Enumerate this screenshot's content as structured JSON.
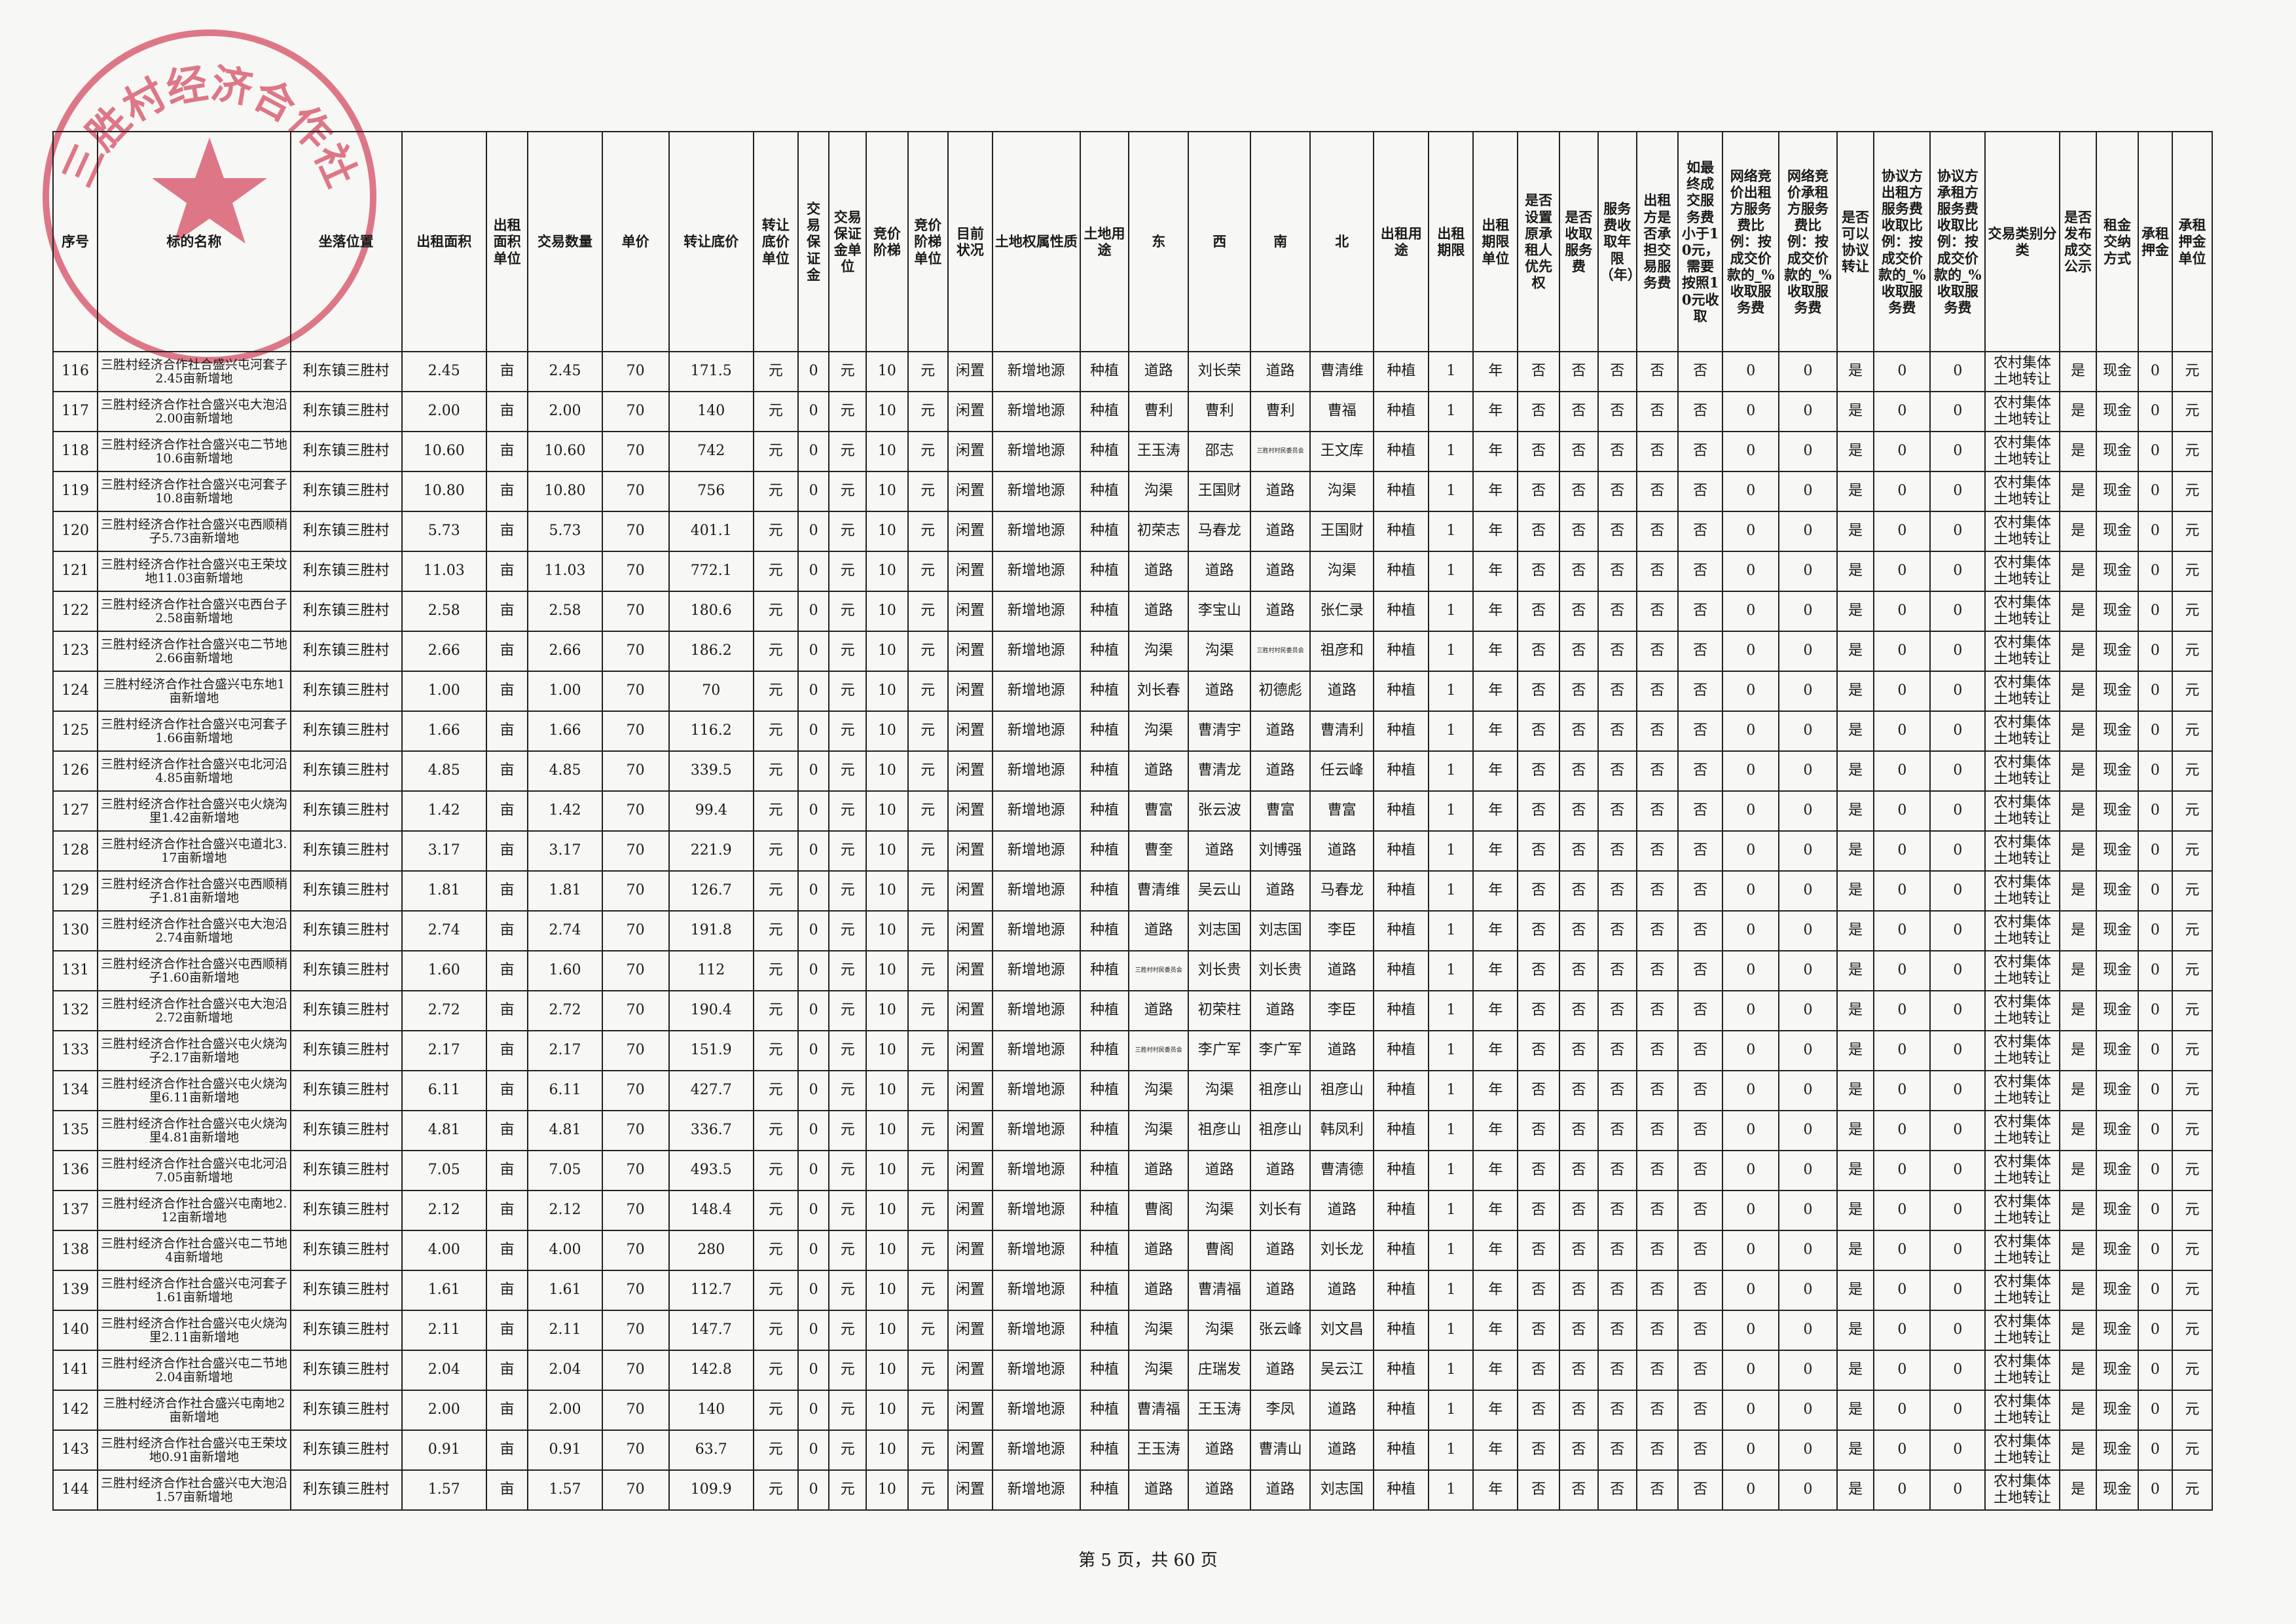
{
  "stamp": {
    "text": "三胜村经济合作社"
  },
  "table": {
    "header": [
      "序号",
      "标的名称",
      "坐落位置",
      "出租面积",
      "出租面积单位",
      "交易数量",
      "单价",
      "转让底价",
      "转让底价单位",
      "交易保证金",
      "交易保证金单位",
      "竞价阶梯",
      "竞价阶梯单位",
      "目前状况",
      "土地权属性质",
      "土地用途",
      "东",
      "西",
      "南",
      "北",
      "出租用途",
      "出租期限",
      "出租期限单位",
      "是否设置原承租人优先权",
      "是否收取服务费",
      "服务费收取年限（年）",
      "出租方是否承担交易服务费",
      "如最终成交服务费小于10元，需要按照10元收取",
      "网络竞价出租方服务费比例：按成交价款的_%收取服务费",
      "网络竞价承租方服务费比例：按成交价款的_%收取服务费",
      "是否可以协议转让",
      "协议方出租方服务费收取比例：按成交价款的_%收取服务费",
      "协议方承租方服务费收取比例：按成交价款的_%收取服务费",
      "交易类别分类",
      "是否发布成交公示",
      "租金交纳方式",
      "承租押金",
      "承租押金单位"
    ],
    "rows": [
      [
        "116",
        "三胜村经济合作社合盛兴屯河套子2.45亩新增地",
        "利东镇三胜村",
        "2.45",
        "亩",
        "2.45",
        "70",
        "171.5",
        "元",
        "0",
        "元",
        "10",
        "元",
        "闲置",
        "新增地源",
        "种植",
        "道路",
        "刘长荣",
        "道路",
        "曹清维",
        "种植",
        "1",
        "年",
        "否",
        "否",
        "否",
        "否",
        "否",
        "0",
        "0",
        "是",
        "0",
        "0",
        "农村集体土地转让",
        "是",
        "现金",
        "0",
        "元"
      ],
      [
        "117",
        "三胜村经济合作社合盛兴屯大泡沿2.00亩新增地",
        "利东镇三胜村",
        "2.00",
        "亩",
        "2.00",
        "70",
        "140",
        "元",
        "0",
        "元",
        "10",
        "元",
        "闲置",
        "新增地源",
        "种植",
        "曹利",
        "曹利",
        "曹利",
        "曹福",
        "种植",
        "1",
        "年",
        "否",
        "否",
        "否",
        "否",
        "否",
        "0",
        "0",
        "是",
        "0",
        "0",
        "农村集体土地转让",
        "是",
        "现金",
        "0",
        "元"
      ],
      [
        "118",
        "三胜村经济合作社合盛兴屯二节地10.6亩新增地",
        "利东镇三胜村",
        "10.60",
        "亩",
        "10.60",
        "70",
        "742",
        "元",
        "0",
        "元",
        "10",
        "元",
        "闲置",
        "新增地源",
        "种植",
        "王玉涛",
        "邵志",
        "三胜村村民委员会",
        "王文库",
        "种植",
        "1",
        "年",
        "否",
        "否",
        "否",
        "否",
        "否",
        "0",
        "0",
        "是",
        "0",
        "0",
        "农村集体土地转让",
        "是",
        "现金",
        "0",
        "元"
      ],
      [
        "119",
        "三胜村经济合作社合盛兴屯河套子10.8亩新增地",
        "利东镇三胜村",
        "10.80",
        "亩",
        "10.80",
        "70",
        "756",
        "元",
        "0",
        "元",
        "10",
        "元",
        "闲置",
        "新增地源",
        "种植",
        "沟渠",
        "王国财",
        "道路",
        "沟渠",
        "种植",
        "1",
        "年",
        "否",
        "否",
        "否",
        "否",
        "否",
        "0",
        "0",
        "是",
        "0",
        "0",
        "农村集体土地转让",
        "是",
        "现金",
        "0",
        "元"
      ],
      [
        "120",
        "三胜村经济合作社合盛兴屯西顺稍子5.73亩新增地",
        "利东镇三胜村",
        "5.73",
        "亩",
        "5.73",
        "70",
        "401.1",
        "元",
        "0",
        "元",
        "10",
        "元",
        "闲置",
        "新增地源",
        "种植",
        "初荣志",
        "马春龙",
        "道路",
        "王国财",
        "种植",
        "1",
        "年",
        "否",
        "否",
        "否",
        "否",
        "否",
        "0",
        "0",
        "是",
        "0",
        "0",
        "农村集体土地转让",
        "是",
        "现金",
        "0",
        "元"
      ],
      [
        "121",
        "三胜村经济合作社合盛兴屯王荣坟地11.03亩新增地",
        "利东镇三胜村",
        "11.03",
        "亩",
        "11.03",
        "70",
        "772.1",
        "元",
        "0",
        "元",
        "10",
        "元",
        "闲置",
        "新增地源",
        "种植",
        "道路",
        "道路",
        "道路",
        "沟渠",
        "种植",
        "1",
        "年",
        "否",
        "否",
        "否",
        "否",
        "否",
        "0",
        "0",
        "是",
        "0",
        "0",
        "农村集体土地转让",
        "是",
        "现金",
        "0",
        "元"
      ],
      [
        "122",
        "三胜村经济合作社合盛兴屯西台子2.58亩新增地",
        "利东镇三胜村",
        "2.58",
        "亩",
        "2.58",
        "70",
        "180.6",
        "元",
        "0",
        "元",
        "10",
        "元",
        "闲置",
        "新增地源",
        "种植",
        "道路",
        "李宝山",
        "道路",
        "张仁录",
        "种植",
        "1",
        "年",
        "否",
        "否",
        "否",
        "否",
        "否",
        "0",
        "0",
        "是",
        "0",
        "0",
        "农村集体土地转让",
        "是",
        "现金",
        "0",
        "元"
      ],
      [
        "123",
        "三胜村经济合作社合盛兴屯二节地2.66亩新增地",
        "利东镇三胜村",
        "2.66",
        "亩",
        "2.66",
        "70",
        "186.2",
        "元",
        "0",
        "元",
        "10",
        "元",
        "闲置",
        "新增地源",
        "种植",
        "沟渠",
        "沟渠",
        "三胜村村民委员会",
        "祖彦和",
        "种植",
        "1",
        "年",
        "否",
        "否",
        "否",
        "否",
        "否",
        "0",
        "0",
        "是",
        "0",
        "0",
        "农村集体土地转让",
        "是",
        "现金",
        "0",
        "元"
      ],
      [
        "124",
        "三胜村经济合作社合盛兴屯东地1亩新增地",
        "利东镇三胜村",
        "1.00",
        "亩",
        "1.00",
        "70",
        "70",
        "元",
        "0",
        "元",
        "10",
        "元",
        "闲置",
        "新增地源",
        "种植",
        "刘长春",
        "道路",
        "初德彪",
        "道路",
        "种植",
        "1",
        "年",
        "否",
        "否",
        "否",
        "否",
        "否",
        "0",
        "0",
        "是",
        "0",
        "0",
        "农村集体土地转让",
        "是",
        "现金",
        "0",
        "元"
      ],
      [
        "125",
        "三胜村经济合作社合盛兴屯河套子1.66亩新增地",
        "利东镇三胜村",
        "1.66",
        "亩",
        "1.66",
        "70",
        "116.2",
        "元",
        "0",
        "元",
        "10",
        "元",
        "闲置",
        "新增地源",
        "种植",
        "沟渠",
        "曹清宇",
        "道路",
        "曹清利",
        "种植",
        "1",
        "年",
        "否",
        "否",
        "否",
        "否",
        "否",
        "0",
        "0",
        "是",
        "0",
        "0",
        "农村集体土地转让",
        "是",
        "现金",
        "0",
        "元"
      ],
      [
        "126",
        "三胜村经济合作社合盛兴屯北河沿4.85亩新增地",
        "利东镇三胜村",
        "4.85",
        "亩",
        "4.85",
        "70",
        "339.5",
        "元",
        "0",
        "元",
        "10",
        "元",
        "闲置",
        "新增地源",
        "种植",
        "道路",
        "曹清龙",
        "道路",
        "任云峰",
        "种植",
        "1",
        "年",
        "否",
        "否",
        "否",
        "否",
        "否",
        "0",
        "0",
        "是",
        "0",
        "0",
        "农村集体土地转让",
        "是",
        "现金",
        "0",
        "元"
      ],
      [
        "127",
        "三胜村经济合作社合盛兴屯火烧沟里1.42亩新增地",
        "利东镇三胜村",
        "1.42",
        "亩",
        "1.42",
        "70",
        "99.4",
        "元",
        "0",
        "元",
        "10",
        "元",
        "闲置",
        "新增地源",
        "种植",
        "曹富",
        "张云波",
        "曹富",
        "曹富",
        "种植",
        "1",
        "年",
        "否",
        "否",
        "否",
        "否",
        "否",
        "0",
        "0",
        "是",
        "0",
        "0",
        "农村集体土地转让",
        "是",
        "现金",
        "0",
        "元"
      ],
      [
        "128",
        "三胜村经济合作社合盛兴屯道北3.17亩新增地",
        "利东镇三胜村",
        "3.17",
        "亩",
        "3.17",
        "70",
        "221.9",
        "元",
        "0",
        "元",
        "10",
        "元",
        "闲置",
        "新增地源",
        "种植",
        "曹奎",
        "道路",
        "刘博强",
        "道路",
        "种植",
        "1",
        "年",
        "否",
        "否",
        "否",
        "否",
        "否",
        "0",
        "0",
        "是",
        "0",
        "0",
        "农村集体土地转让",
        "是",
        "现金",
        "0",
        "元"
      ],
      [
        "129",
        "三胜村经济合作社合盛兴屯西顺稍子1.81亩新增地",
        "利东镇三胜村",
        "1.81",
        "亩",
        "1.81",
        "70",
        "126.7",
        "元",
        "0",
        "元",
        "10",
        "元",
        "闲置",
        "新增地源",
        "种植",
        "曹清维",
        "吴云山",
        "道路",
        "马春龙",
        "种植",
        "1",
        "年",
        "否",
        "否",
        "否",
        "否",
        "否",
        "0",
        "0",
        "是",
        "0",
        "0",
        "农村集体土地转让",
        "是",
        "现金",
        "0",
        "元"
      ],
      [
        "130",
        "三胜村经济合作社合盛兴屯大泡沿2.74亩新增地",
        "利东镇三胜村",
        "2.74",
        "亩",
        "2.74",
        "70",
        "191.8",
        "元",
        "0",
        "元",
        "10",
        "元",
        "闲置",
        "新增地源",
        "种植",
        "道路",
        "刘志国",
        "刘志国",
        "李臣",
        "种植",
        "1",
        "年",
        "否",
        "否",
        "否",
        "否",
        "否",
        "0",
        "0",
        "是",
        "0",
        "0",
        "农村集体土地转让",
        "是",
        "现金",
        "0",
        "元"
      ],
      [
        "131",
        "三胜村经济合作社合盛兴屯西顺稍子1.60亩新增地",
        "利东镇三胜村",
        "1.60",
        "亩",
        "1.60",
        "70",
        "112",
        "元",
        "0",
        "元",
        "10",
        "元",
        "闲置",
        "新增地源",
        "种植",
        "三胜村村民委员会",
        "刘长贵",
        "刘长贵",
        "道路",
        "种植",
        "1",
        "年",
        "否",
        "否",
        "否",
        "否",
        "否",
        "0",
        "0",
        "是",
        "0",
        "0",
        "农村集体土地转让",
        "是",
        "现金",
        "0",
        "元"
      ],
      [
        "132",
        "三胜村经济合作社合盛兴屯大泡沿2.72亩新增地",
        "利东镇三胜村",
        "2.72",
        "亩",
        "2.72",
        "70",
        "190.4",
        "元",
        "0",
        "元",
        "10",
        "元",
        "闲置",
        "新增地源",
        "种植",
        "道路",
        "初荣柱",
        "道路",
        "李臣",
        "种植",
        "1",
        "年",
        "否",
        "否",
        "否",
        "否",
        "否",
        "0",
        "0",
        "是",
        "0",
        "0",
        "农村集体土地转让",
        "是",
        "现金",
        "0",
        "元"
      ],
      [
        "133",
        "三胜村经济合作社合盛兴屯火烧沟子2.17亩新增地",
        "利东镇三胜村",
        "2.17",
        "亩",
        "2.17",
        "70",
        "151.9",
        "元",
        "0",
        "元",
        "10",
        "元",
        "闲置",
        "新增地源",
        "种植",
        "三胜村村民委员会",
        "李广军",
        "李广军",
        "道路",
        "种植",
        "1",
        "年",
        "否",
        "否",
        "否",
        "否",
        "否",
        "0",
        "0",
        "是",
        "0",
        "0",
        "农村集体土地转让",
        "是",
        "现金",
        "0",
        "元"
      ],
      [
        "134",
        "三胜村经济合作社合盛兴屯火烧沟里6.11亩新增地",
        "利东镇三胜村",
        "6.11",
        "亩",
        "6.11",
        "70",
        "427.7",
        "元",
        "0",
        "元",
        "10",
        "元",
        "闲置",
        "新增地源",
        "种植",
        "沟渠",
        "沟渠",
        "祖彦山",
        "祖彦山",
        "种植",
        "1",
        "年",
        "否",
        "否",
        "否",
        "否",
        "否",
        "0",
        "0",
        "是",
        "0",
        "0",
        "农村集体土地转让",
        "是",
        "现金",
        "0",
        "元"
      ],
      [
        "135",
        "三胜村经济合作社合盛兴屯火烧沟里4.81亩新增地",
        "利东镇三胜村",
        "4.81",
        "亩",
        "4.81",
        "70",
        "336.7",
        "元",
        "0",
        "元",
        "10",
        "元",
        "闲置",
        "新增地源",
        "种植",
        "沟渠",
        "祖彦山",
        "祖彦山",
        "韩凤利",
        "种植",
        "1",
        "年",
        "否",
        "否",
        "否",
        "否",
        "否",
        "0",
        "0",
        "是",
        "0",
        "0",
        "农村集体土地转让",
        "是",
        "现金",
        "0",
        "元"
      ],
      [
        "136",
        "三胜村经济合作社合盛兴屯北河沿7.05亩新增地",
        "利东镇三胜村",
        "7.05",
        "亩",
        "7.05",
        "70",
        "493.5",
        "元",
        "0",
        "元",
        "10",
        "元",
        "闲置",
        "新增地源",
        "种植",
        "道路",
        "道路",
        "道路",
        "曹清德",
        "种植",
        "1",
        "年",
        "否",
        "否",
        "否",
        "否",
        "否",
        "0",
        "0",
        "是",
        "0",
        "0",
        "农村集体土地转让",
        "是",
        "现金",
        "0",
        "元"
      ],
      [
        "137",
        "三胜村经济合作社合盛兴屯南地2.12亩新增地",
        "利东镇三胜村",
        "2.12",
        "亩",
        "2.12",
        "70",
        "148.4",
        "元",
        "0",
        "元",
        "10",
        "元",
        "闲置",
        "新增地源",
        "种植",
        "曹阁",
        "沟渠",
        "刘长有",
        "道路",
        "种植",
        "1",
        "年",
        "否",
        "否",
        "否",
        "否",
        "否",
        "0",
        "0",
        "是",
        "0",
        "0",
        "农村集体土地转让",
        "是",
        "现金",
        "0",
        "元"
      ],
      [
        "138",
        "三胜村经济合作社合盛兴屯二节地4亩新增地",
        "利东镇三胜村",
        "4.00",
        "亩",
        "4.00",
        "70",
        "280",
        "元",
        "0",
        "元",
        "10",
        "元",
        "闲置",
        "新增地源",
        "种植",
        "道路",
        "曹阁",
        "道路",
        "刘长龙",
        "种植",
        "1",
        "年",
        "否",
        "否",
        "否",
        "否",
        "否",
        "0",
        "0",
        "是",
        "0",
        "0",
        "农村集体土地转让",
        "是",
        "现金",
        "0",
        "元"
      ],
      [
        "139",
        "三胜村经济合作社合盛兴屯河套子1.61亩新增地",
        "利东镇三胜村",
        "1.61",
        "亩",
        "1.61",
        "70",
        "112.7",
        "元",
        "0",
        "元",
        "10",
        "元",
        "闲置",
        "新增地源",
        "种植",
        "道路",
        "曹清福",
        "道路",
        "道路",
        "种植",
        "1",
        "年",
        "否",
        "否",
        "否",
        "否",
        "否",
        "0",
        "0",
        "是",
        "0",
        "0",
        "农村集体土地转让",
        "是",
        "现金",
        "0",
        "元"
      ],
      [
        "140",
        "三胜村经济合作社合盛兴屯火烧沟里2.11亩新增地",
        "利东镇三胜村",
        "2.11",
        "亩",
        "2.11",
        "70",
        "147.7",
        "元",
        "0",
        "元",
        "10",
        "元",
        "闲置",
        "新增地源",
        "种植",
        "沟渠",
        "沟渠",
        "张云峰",
        "刘文昌",
        "种植",
        "1",
        "年",
        "否",
        "否",
        "否",
        "否",
        "否",
        "0",
        "0",
        "是",
        "0",
        "0",
        "农村集体土地转让",
        "是",
        "现金",
        "0",
        "元"
      ],
      [
        "141",
        "三胜村经济合作社合盛兴屯二节地2.04亩新增地",
        "利东镇三胜村",
        "2.04",
        "亩",
        "2.04",
        "70",
        "142.8",
        "元",
        "0",
        "元",
        "10",
        "元",
        "闲置",
        "新增地源",
        "种植",
        "沟渠",
        "庄瑞发",
        "道路",
        "吴云江",
        "种植",
        "1",
        "年",
        "否",
        "否",
        "否",
        "否",
        "否",
        "0",
        "0",
        "是",
        "0",
        "0",
        "农村集体土地转让",
        "是",
        "现金",
        "0",
        "元"
      ],
      [
        "142",
        "三胜村经济合作社合盛兴屯南地2亩新增地",
        "利东镇三胜村",
        "2.00",
        "亩",
        "2.00",
        "70",
        "140",
        "元",
        "0",
        "元",
        "10",
        "元",
        "闲置",
        "新增地源",
        "种植",
        "曹清福",
        "王玉涛",
        "李凤",
        "道路",
        "种植",
        "1",
        "年",
        "否",
        "否",
        "否",
        "否",
        "否",
        "0",
        "0",
        "是",
        "0",
        "0",
        "农村集体土地转让",
        "是",
        "现金",
        "0",
        "元"
      ],
      [
        "143",
        "三胜村经济合作社合盛兴屯王荣坟地0.91亩新增地",
        "利东镇三胜村",
        "0.91",
        "亩",
        "0.91",
        "70",
        "63.7",
        "元",
        "0",
        "元",
        "10",
        "元",
        "闲置",
        "新增地源",
        "种植",
        "王玉涛",
        "道路",
        "曹清山",
        "道路",
        "种植",
        "1",
        "年",
        "否",
        "否",
        "否",
        "否",
        "否",
        "0",
        "0",
        "是",
        "0",
        "0",
        "农村集体土地转让",
        "是",
        "现金",
        "0",
        "元"
      ],
      [
        "144",
        "三胜村经济合作社合盛兴屯大泡沿1.57亩新增地",
        "利东镇三胜村",
        "1.57",
        "亩",
        "1.57",
        "70",
        "109.9",
        "元",
        "0",
        "元",
        "10",
        "元",
        "闲置",
        "新增地源",
        "种植",
        "道路",
        "道路",
        "道路",
        "刘志国",
        "种植",
        "1",
        "年",
        "否",
        "否",
        "否",
        "否",
        "否",
        "0",
        "0",
        "是",
        "0",
        "0",
        "农村集体土地转让",
        "是",
        "现金",
        "0",
        "元"
      ]
    ]
  },
  "footer": "第 5 页，共 60 页"
}
